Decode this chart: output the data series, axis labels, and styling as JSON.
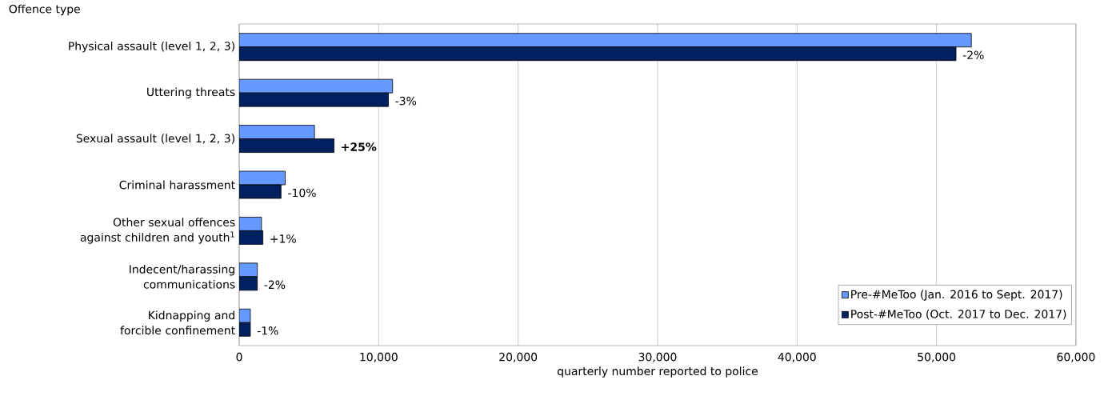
{
  "chart_data": {
    "type": "bar",
    "orientation": "horizontal",
    "xlabel": "quarterly number reported to police",
    "ylabel": "Offence type",
    "categories": [
      "Physical assault (level 1, 2, 3)",
      "Uttering threats",
      "Sexual assault (level 1, 2, 3)",
      "Criminal harassment",
      "Other sexual offences against children and youth$^{1}$",
      "Indecent/harassing communications",
      "Kidnapping and forcible confinement"
    ],
    "series": [
      {
        "name": "Pre-#MeToo (Jan. 2016 to Sept. 2017)",
        "color": "#6699ff",
        "values": [
          52500,
          11000,
          5400,
          3300,
          1600,
          1300,
          800
        ]
      },
      {
        "name": "Post-#MeToo (Oct. 2017 to Dec. 2017)",
        "color": "#002060",
        "values": [
          51400,
          10700,
          6800,
          3000,
          1700,
          1300,
          800
        ]
      }
    ],
    "annotations": [
      {
        "text": "-2%",
        "x": 51400,
        "y": "Physical assault (level 1, 2, 3)"
      },
      {
        "text": "-3%",
        "x": 10700,
        "y": "Uttering threats"
      },
      {
        "text": "**+25%**",
        "x": 6800,
        "y": "Sexual assault (level 1, 2, 3)"
      },
      {
        "text": "-10%",
        "x": 3000,
        "y": "Criminal harassment"
      },
      {
        "text": "+1%",
        "x": 1700,
        "y": "Other sexual offences against children and youth$^{1}$"
      },
      {
        "text": "-2%",
        "x": 1300,
        "y": "Indecent/harassing communications"
      },
      {
        "text": "-1%",
        "x": 800,
        "y": "Kidnapping and forcible confinement"
      }
    ],
    "xlim": [
      0,
      60000
    ],
    "xticks": [
      0,
      {
        "value": 10000,
        "label": "10,000"
      },
      {
        "value": 20000,
        "label": "20,000"
      },
      {
        "value": 30000,
        "label": "30,000"
      },
      {
        "value": 40000,
        "label": "40,000"
      },
      {
        "value": 50000,
        "label": "50,000"
      },
      {
        "value": 60000,
        "label": "60,000"
      }
    ],
    "grid": "x",
    "legend": "bottom right"
  }
}
